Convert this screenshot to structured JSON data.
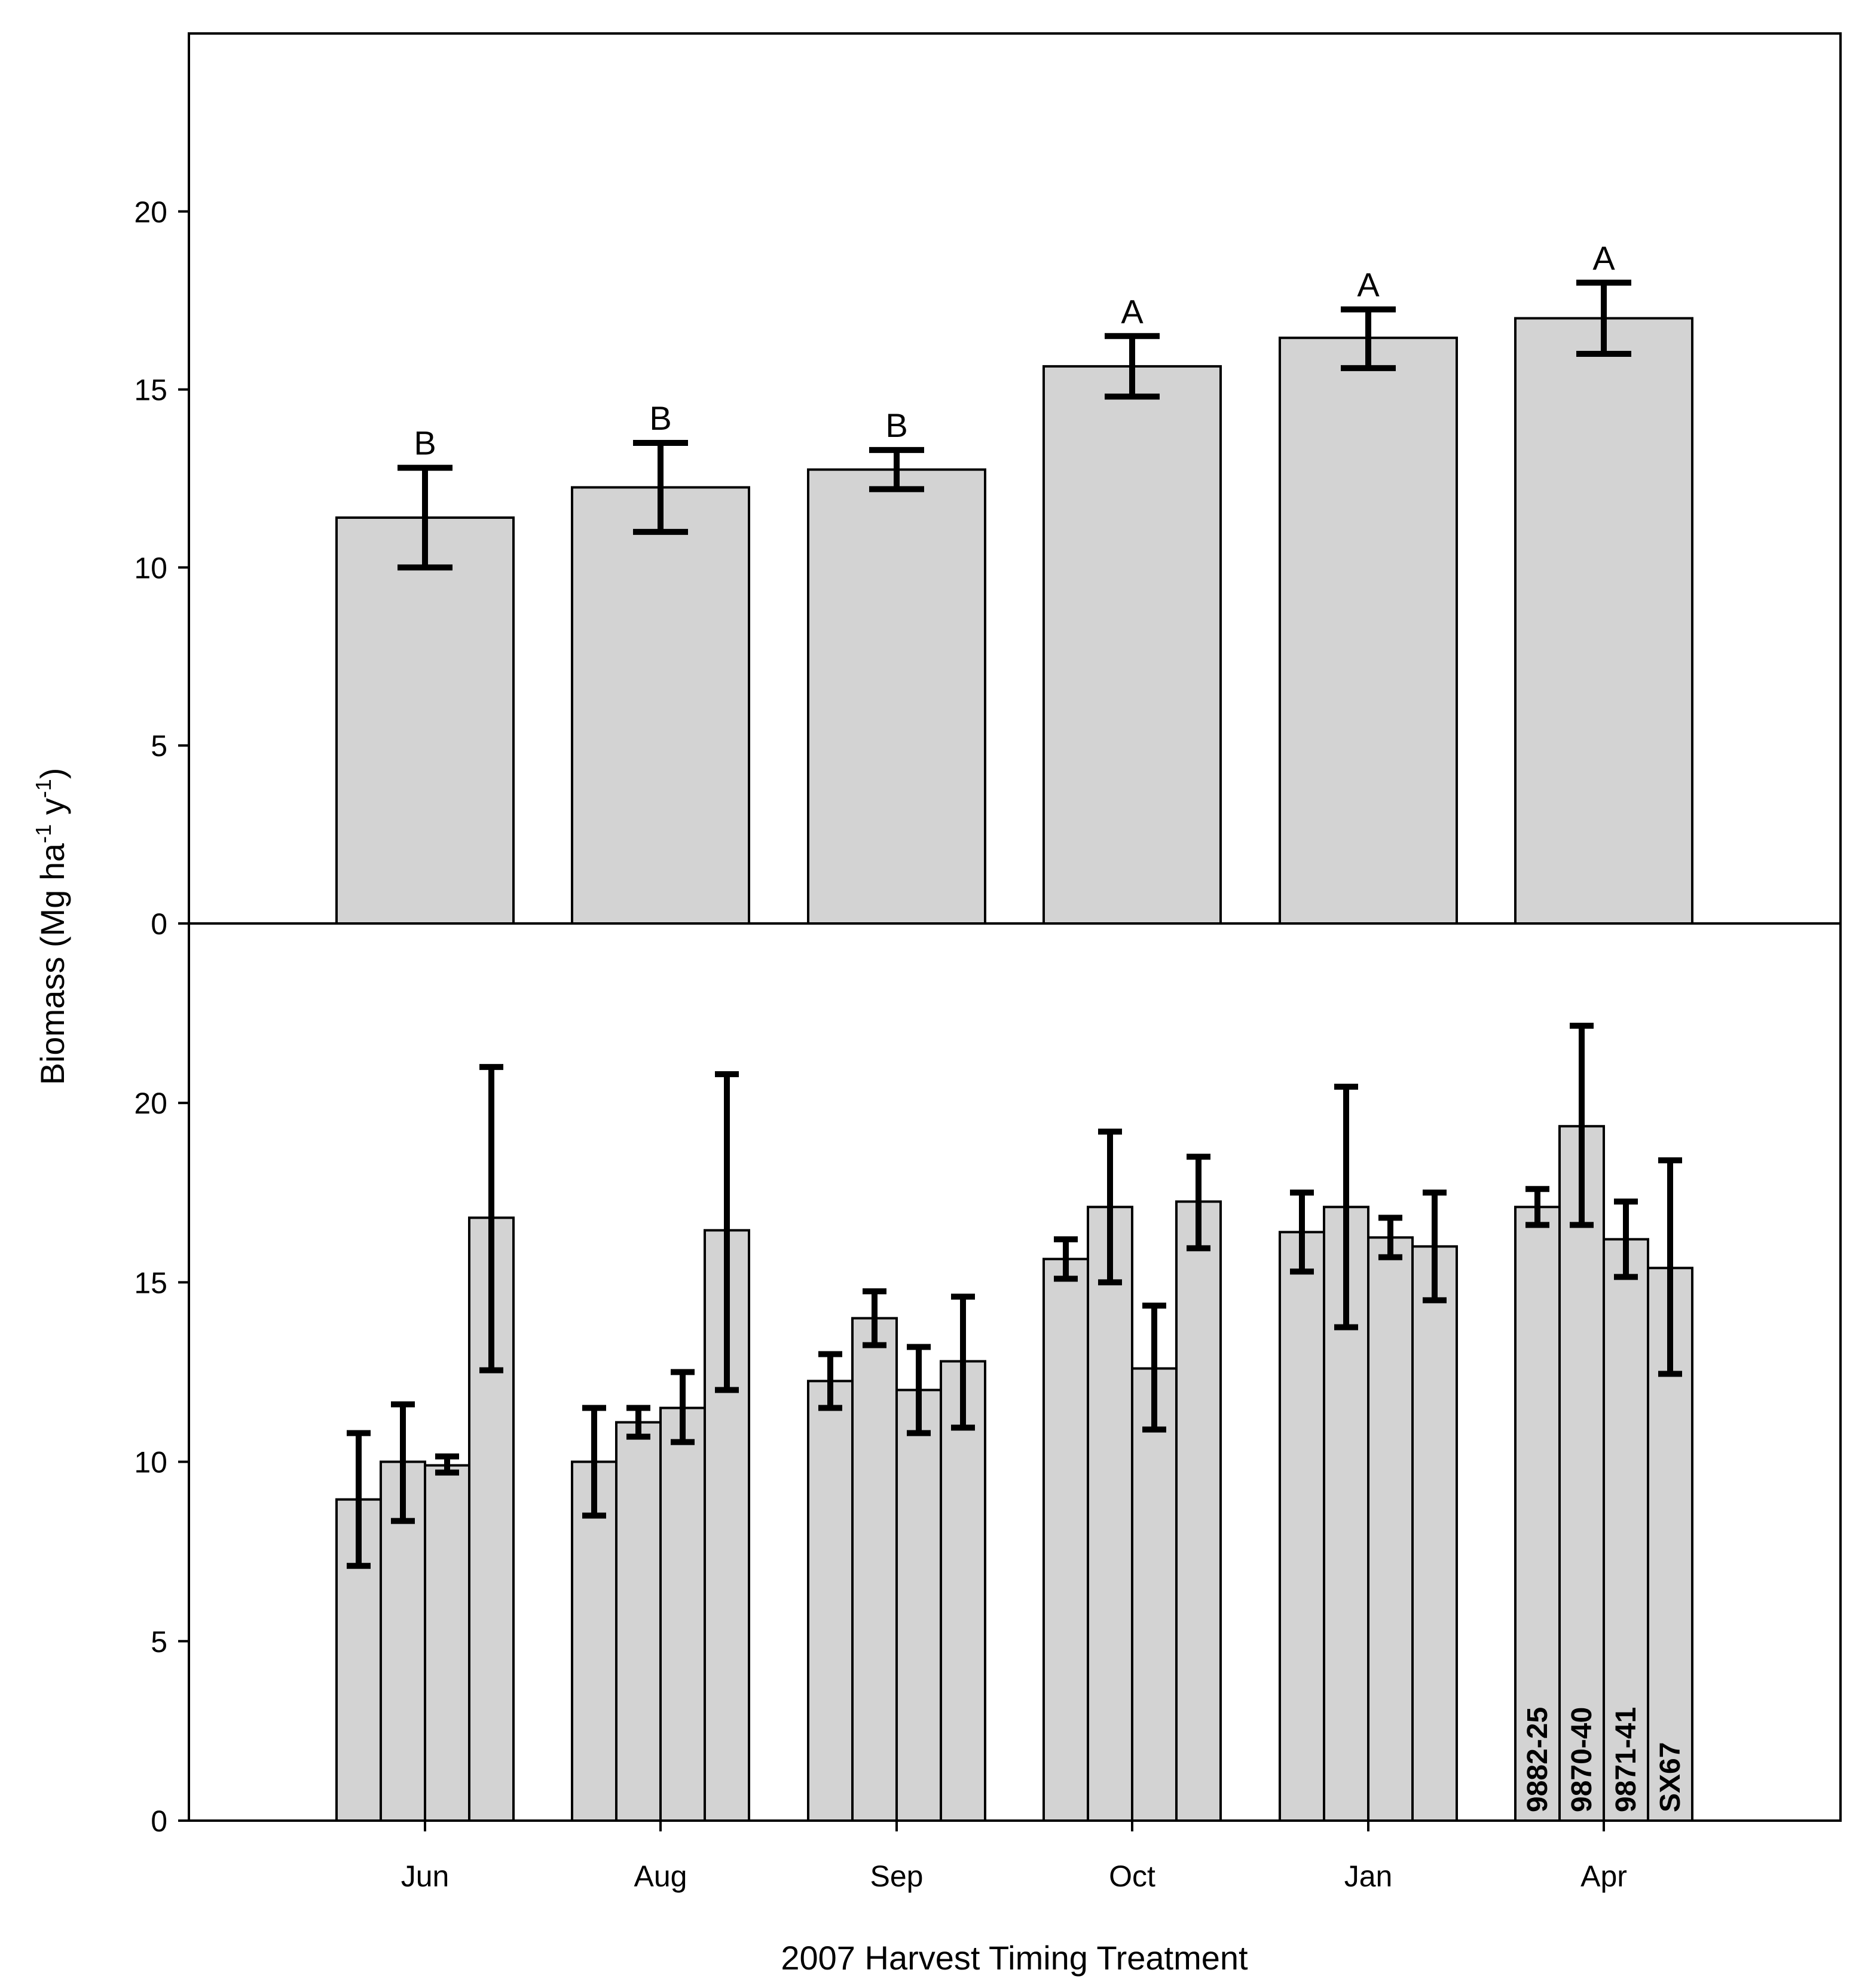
{
  "chart_data": [
    {
      "type": "bar",
      "panel": "top",
      "categories": [
        "Jun",
        "Aug",
        "Sep",
        "Oct",
        "Jan",
        "Apr"
      ],
      "values": [
        11.4,
        12.25,
        12.75,
        15.65,
        16.45,
        17.0
      ],
      "err_low": [
        10.0,
        11.0,
        12.2,
        14.8,
        15.6,
        16.0
      ],
      "err_high": [
        12.8,
        13.5,
        13.3,
        16.5,
        17.25,
        18.0
      ],
      "letters": [
        "B",
        "B",
        "B",
        "A",
        "A",
        "A"
      ],
      "ylim": [
        0,
        25
      ],
      "yticks": [
        "0",
        "5",
        "10",
        "15",
        "20"
      ]
    },
    {
      "type": "bar",
      "panel": "bottom",
      "categories": [
        "Jun",
        "Aug",
        "Sep",
        "Oct",
        "Jan",
        "Apr"
      ],
      "series": [
        {
          "name": "9882-25",
          "values": [
            8.95,
            10.0,
            12.25,
            15.65,
            16.4,
            17.1
          ],
          "err_low": [
            7.1,
            8.5,
            11.5,
            15.1,
            15.3,
            16.6
          ],
          "err_high": [
            10.8,
            11.5,
            13.0,
            16.2,
            17.5,
            17.6
          ]
        },
        {
          "name": "9870-40",
          "values": [
            10.0,
            11.1,
            14.0,
            17.1,
            17.1,
            19.35
          ],
          "err_low": [
            8.35,
            10.7,
            13.25,
            15.0,
            13.75,
            16.6
          ],
          "err_high": [
            11.6,
            11.5,
            14.75,
            19.2,
            20.45,
            22.15
          ]
        },
        {
          "name": "9871-41",
          "values": [
            9.9,
            11.5,
            12.0,
            12.6,
            16.25,
            16.2
          ],
          "err_low": [
            9.7,
            10.55,
            10.8,
            10.9,
            15.7,
            15.15
          ],
          "err_high": [
            10.15,
            12.5,
            13.2,
            14.35,
            16.8,
            17.25
          ]
        },
        {
          "name": "SX67",
          "values": [
            16.8,
            16.45,
            12.8,
            17.25,
            16.0,
            15.4
          ],
          "err_low": [
            12.55,
            12.0,
            10.95,
            15.95,
            14.5,
            12.45
          ],
          "err_high": [
            21.0,
            20.8,
            14.6,
            18.5,
            17.5,
            18.4
          ]
        }
      ],
      "ylim": [
        0,
        25
      ],
      "yticks": [
        "0",
        "5",
        "10",
        "15",
        "20"
      ]
    }
  ],
  "axes": {
    "ylabel": "Biomass (Mg ha",
    "ylabel_sup1": "-1",
    "ylabel_mid": " y",
    "ylabel_sup2": "-1",
    "ylabel_end": ")",
    "xlabel": "2007 Harvest Timing Treatment"
  },
  "colors": {
    "bar_fill": "#d3d3d3",
    "bar_stroke": "#000000",
    "error_bar": "#000000",
    "background": "#ffffff"
  }
}
